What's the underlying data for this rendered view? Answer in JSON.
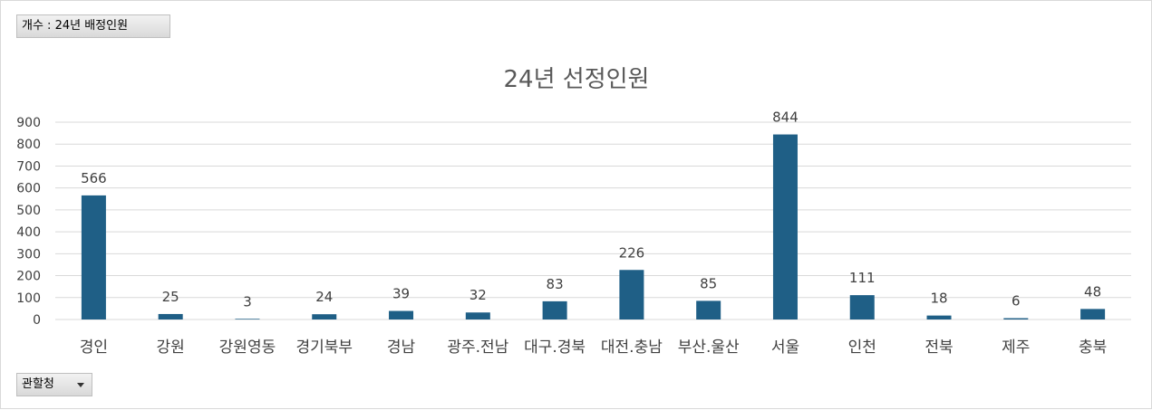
{
  "pivot": {
    "value_field": "개수 : 24년 배정인원",
    "axis_field": "관할청"
  },
  "chart_data": {
    "type": "bar",
    "title": "24년 선정인원",
    "xlabel": "",
    "ylabel": "",
    "categories": [
      "경인",
      "강원",
      "강원영동",
      "경기북부",
      "경남",
      "광주.전남",
      "대구.경북",
      "대전.충남",
      "부산.울산",
      "서울",
      "인천",
      "전북",
      "제주",
      "충북"
    ],
    "values": [
      566,
      25,
      3,
      24,
      39,
      32,
      83,
      226,
      85,
      844,
      111,
      18,
      6,
      48
    ],
    "ylim": [
      0,
      900
    ],
    "yticks": [
      0,
      100,
      200,
      300,
      400,
      500,
      600,
      700,
      800,
      900
    ],
    "grid": true,
    "legend": "none",
    "bar_color": "#1f5f86"
  }
}
